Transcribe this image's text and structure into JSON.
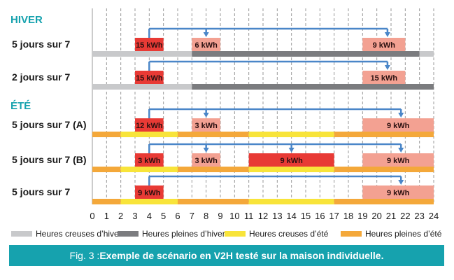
{
  "chart_data": {
    "type": "gantt",
    "title": "",
    "xlabel": "",
    "ylabel": "",
    "xlim": [
      0,
      24
    ],
    "x_ticks": [
      0,
      1,
      2,
      3,
      4,
      5,
      6,
      7,
      8,
      9,
      10,
      11,
      12,
      13,
      14,
      15,
      16,
      17,
      18,
      19,
      20,
      21,
      22,
      23,
      24
    ],
    "sections": [
      {
        "label": "HIVER",
        "rows": [
          {
            "label": "5 jours sur 7",
            "tariff": [
              {
                "start": 0,
                "end": 7,
                "kind": "hc_hiver"
              },
              {
                "start": 7,
                "end": 23,
                "kind": "hp_hiver"
              },
              {
                "start": 23,
                "end": 24,
                "kind": "hc_hiver"
              }
            ],
            "blocks": [
              {
                "start": 3,
                "end": 5,
                "label": "15 kWh",
                "kind": "charge"
              },
              {
                "start": 7,
                "end": 9,
                "label": "6 kWh",
                "kind": "discharge"
              },
              {
                "start": 19,
                "end": 22,
                "label": "9 kWh",
                "kind": "discharge"
              }
            ],
            "arrow": {
              "from": 4,
              "to_main": 7,
              "end": 20.75,
              "drops": [
                8,
                20.75
              ]
            }
          },
          {
            "label": "2 jours sur 7",
            "tariff": [
              {
                "start": 0,
                "end": 7,
                "kind": "hc_hiver"
              },
              {
                "start": 7,
                "end": 24,
                "kind": "hp_hiver"
              }
            ],
            "blocks": [
              {
                "start": 3,
                "end": 5,
                "label": "15 kWh",
                "kind": "charge"
              },
              {
                "start": 19,
                "end": 22,
                "label": "15 kWh",
                "kind": "discharge"
              }
            ],
            "arrow": {
              "from": 4,
              "to_main": 7,
              "end": 20.75,
              "drops": [
                20.75
              ]
            }
          }
        ]
      },
      {
        "label": "ÉTÉ",
        "rows": [
          {
            "label": "5 jours sur 7 (A)",
            "tariff": [
              {
                "start": 0,
                "end": 2,
                "kind": "hp_ete"
              },
              {
                "start": 2,
                "end": 6,
                "kind": "hc_ete"
              },
              {
                "start": 6,
                "end": 11,
                "kind": "hp_ete"
              },
              {
                "start": 11,
                "end": 17,
                "kind": "hc_ete"
              },
              {
                "start": 17,
                "end": 24,
                "kind": "hp_ete"
              }
            ],
            "blocks": [
              {
                "start": 3,
                "end": 5,
                "label": "12 kWh",
                "kind": "charge"
              },
              {
                "start": 7,
                "end": 9,
                "label": "3 kWh",
                "kind": "discharge"
              },
              {
                "start": 19,
                "end": 24,
                "label": "9 kWh",
                "kind": "discharge"
              }
            ],
            "arrow": {
              "from": 4,
              "to_main": 7,
              "end": 21.7,
              "drops": [
                8,
                21.7
              ]
            }
          },
          {
            "label": "5 jours sur 7 (B)",
            "tariff": [
              {
                "start": 0,
                "end": 2,
                "kind": "hp_ete"
              },
              {
                "start": 2,
                "end": 6,
                "kind": "hc_ete"
              },
              {
                "start": 6,
                "end": 11,
                "kind": "hp_ete"
              },
              {
                "start": 11,
                "end": 17,
                "kind": "hc_ete"
              },
              {
                "start": 17,
                "end": 24,
                "kind": "hp_ete"
              }
            ],
            "blocks": [
              {
                "start": 3,
                "end": 5,
                "label": "3 kWh",
                "kind": "charge"
              },
              {
                "start": 7,
                "end": 9,
                "label": "3 kWh",
                "kind": "discharge"
              },
              {
                "start": 11,
                "end": 17,
                "label": "9 kWh",
                "kind": "charge"
              },
              {
                "start": 19,
                "end": 24,
                "label": "9 kWh",
                "kind": "discharge"
              }
            ],
            "arrow": {
              "from": 4,
              "to_main": 7,
              "end": 21.7,
              "drops": [
                8,
                14,
                21.7
              ]
            }
          },
          {
            "label": "5 jours sur 7",
            "tariff": [
              {
                "start": 0,
                "end": 2,
                "kind": "hp_ete"
              },
              {
                "start": 2,
                "end": 6,
                "kind": "hc_ete"
              },
              {
                "start": 6,
                "end": 11,
                "kind": "hp_ete"
              },
              {
                "start": 11,
                "end": 17,
                "kind": "hc_ete"
              },
              {
                "start": 17,
                "end": 24,
                "kind": "hp_ete"
              }
            ],
            "blocks": [
              {
                "start": 3,
                "end": 5,
                "label": "9 kWh",
                "kind": "charge"
              },
              {
                "start": 19,
                "end": 24,
                "label": "9 kWh",
                "kind": "discharge"
              }
            ],
            "arrow": {
              "from": 4,
              "to_main": 7,
              "end": 21.7,
              "drops": [
                21.7
              ]
            }
          }
        ]
      }
    ],
    "legend": [
      {
        "label": "Heures creuses d’hiver",
        "kind": "hc_hiver"
      },
      {
        "label": "Heures pleines d’hiver",
        "kind": "hp_hiver"
      },
      {
        "label": "Heures creuses d’été",
        "kind": "hc_ete"
      },
      {
        "label": "Heures pleines d’été",
        "kind": "hp_ete"
      }
    ],
    "legend_position": "bottom"
  },
  "colors": {
    "hc_hiver": "#c8c9cb",
    "hp_hiver": "#7b7c7f",
    "hc_ete": "#f8e43a",
    "hp_ete": "#f4a83a",
    "charge": "#e83a35",
    "discharge": "#f3a192",
    "arrow": "#4a86c8",
    "section": "#16a2ae",
    "grid": "#9a9a9a"
  },
  "caption": {
    "prefix": "Fig. 3 : ",
    "text": "Exemple de scénario en V2H testé sur la maison individuelle."
  }
}
